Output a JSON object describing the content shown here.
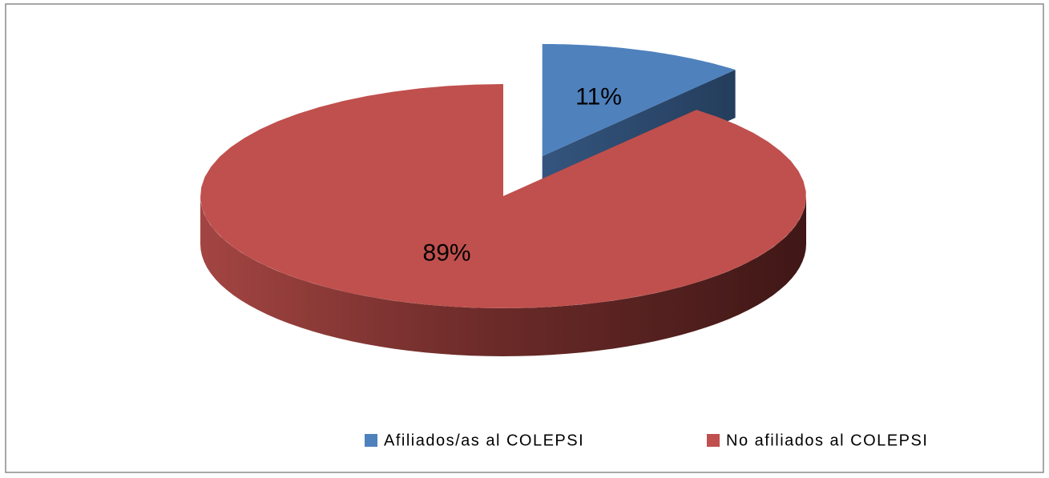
{
  "chart_data": {
    "type": "pie",
    "categories": [
      "Afiliados/as al COLEPSI",
      "No afiliados al COLEPSI"
    ],
    "values": [
      11,
      89
    ],
    "value_labels": [
      "11%",
      "89%"
    ],
    "colors": [
      "#4f81bd",
      "#c0504d"
    ],
    "legend": "bottom"
  }
}
